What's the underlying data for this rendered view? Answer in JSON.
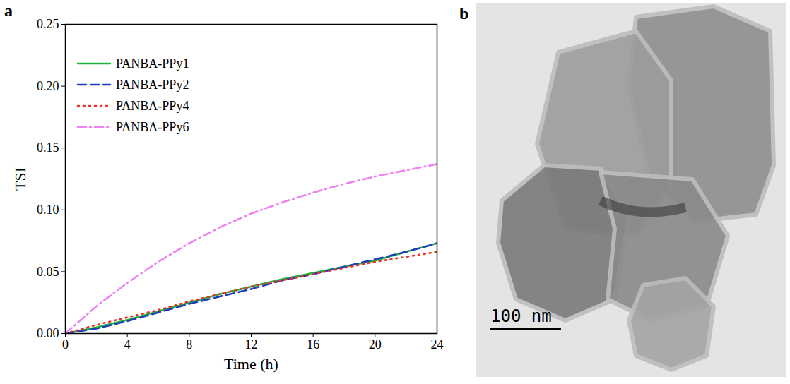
{
  "chart_data": {
    "type": "line",
    "panel_label": "a",
    "x_label": "Time (h)",
    "y_label": "TSI",
    "x": [
      0,
      2,
      4,
      6,
      8,
      10,
      12,
      14,
      16,
      18,
      20,
      22,
      24
    ],
    "series": [
      {
        "name": "PANBA-PPy1",
        "color": "#22b33a",
        "line_style": "solid",
        "values": [
          0,
          0.005,
          0.011,
          0.018,
          0.025,
          0.032,
          0.038,
          0.044,
          0.049,
          0.054,
          0.059,
          0.066,
          0.073
        ]
      },
      {
        "name": "PANBA-PPy2",
        "color": "#1f3fbf",
        "line_style": "dashed",
        "values": [
          0,
          0.004,
          0.01,
          0.017,
          0.024,
          0.03,
          0.036,
          0.043,
          0.048,
          0.054,
          0.06,
          0.066,
          0.073
        ]
      },
      {
        "name": "PANBA-PPy4",
        "color": "#e8322a",
        "line_style": "dotted",
        "values": [
          0,
          0.007,
          0.013,
          0.019,
          0.026,
          0.032,
          0.038,
          0.043,
          0.048,
          0.053,
          0.058,
          0.062,
          0.066
        ]
      },
      {
        "name": "PANBA-PPy6",
        "color": "#ee82ee",
        "line_style": "dashdot",
        "values": [
          0,
          0.022,
          0.041,
          0.058,
          0.073,
          0.086,
          0.097,
          0.106,
          0.114,
          0.121,
          0.127,
          0.132,
          0.137
        ]
      }
    ],
    "xlim": [
      0,
      24
    ],
    "xticks": [
      0,
      4,
      8,
      12,
      16,
      20,
      24
    ],
    "ylim": [
      0,
      0.25
    ],
    "yticks": [
      {
        "value": 0,
        "label": "0.00"
      },
      {
        "value": 0.05,
        "label": "0.05"
      },
      {
        "value": 0.1,
        "label": "0.10"
      },
      {
        "value": 0.15,
        "label": "0.15"
      },
      {
        "value": 0.2,
        "label": "0.20"
      },
      {
        "value": 0.25,
        "label": "0.25"
      }
    ],
    "legend": "upper left"
  },
  "micrograph": {
    "panel_label": "b",
    "scale_bar": "100 nm"
  }
}
